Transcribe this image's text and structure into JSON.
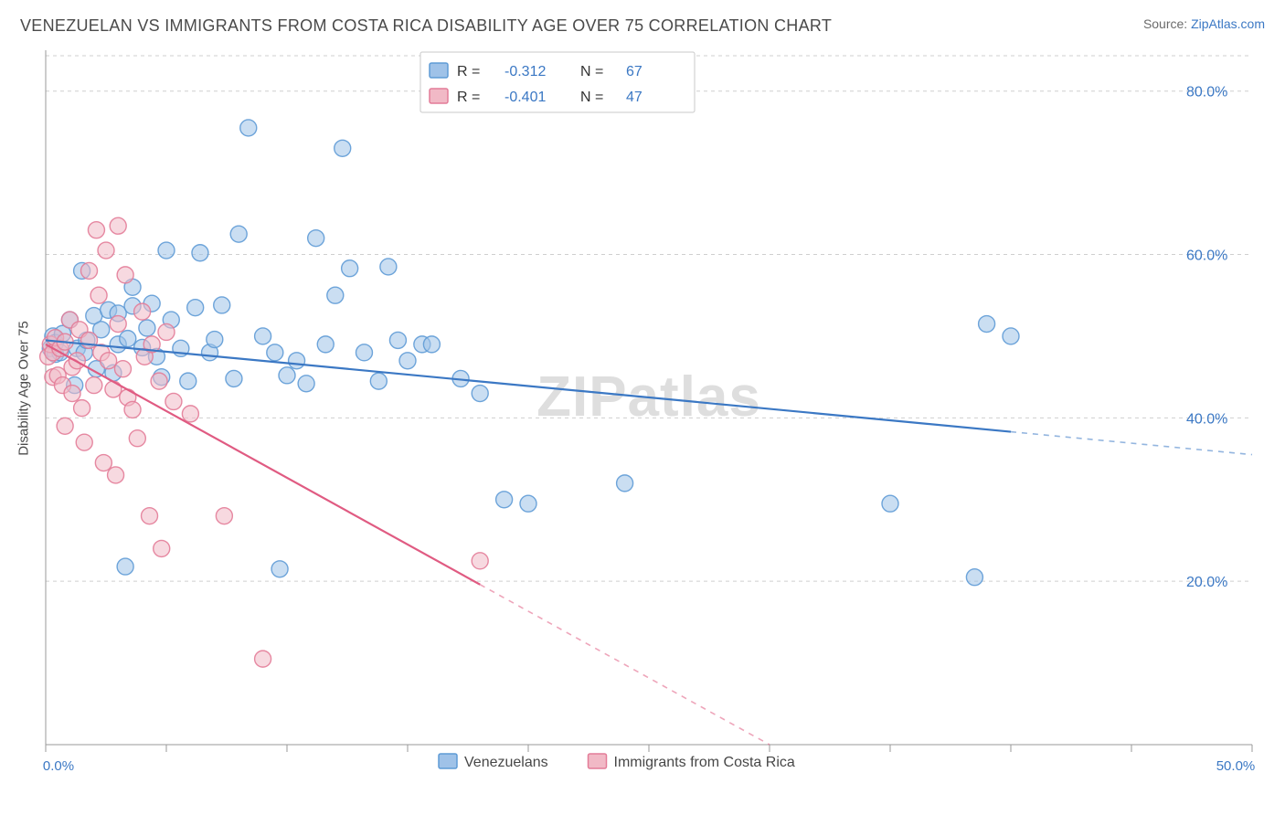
{
  "header": {
    "title": "VENEZUELAN VS IMMIGRANTS FROM COSTA RICA DISABILITY AGE OVER 75 CORRELATION CHART",
    "source_label": "Source:",
    "source_name": "ZipAtlas.com"
  },
  "chart": {
    "type": "scatter",
    "ylabel": "Disability Age Over 75",
    "watermark": "ZIPatlas",
    "background_color": "#ffffff",
    "grid_color": "#cfcfcf",
    "axis_color": "#9a9a9a",
    "tick_label_color": "#3b78c4",
    "xlim": [
      0,
      50
    ],
    "ylim": [
      0,
      85
    ],
    "x_ticks": [
      0,
      5,
      10,
      15,
      20,
      25,
      30,
      35,
      40,
      45,
      50
    ],
    "x_tick_labels": {
      "0": "0.0%",
      "50": "50.0%"
    },
    "y_ticks": [
      20,
      40,
      60,
      80
    ],
    "y_tick_labels": {
      "20": "20.0%",
      "40": "40.0%",
      "60": "60.0%",
      "80": "80.0%"
    },
    "marker_radius": 9,
    "marker_opacity": 0.55,
    "line_width": 2.2,
    "series": [
      {
        "id": "venezuelans",
        "label": "Venezuelans",
        "color_fill": "#9fc2e8",
        "color_stroke": "#5f9bd6",
        "line_color": "#3b78c4",
        "R": "-0.312",
        "N": "67",
        "trend": {
          "x1": 0,
          "y1": 49.5,
          "x2": 50,
          "y2": 35.5
        },
        "points": [
          [
            0.2,
            48.5
          ],
          [
            0.3,
            50.0
          ],
          [
            0.4,
            47.8
          ],
          [
            0.4,
            49.2
          ],
          [
            0.6,
            48.0
          ],
          [
            0.7,
            50.3
          ],
          [
            1.0,
            52.0
          ],
          [
            1.2,
            44.0
          ],
          [
            1.3,
            48.5
          ],
          [
            1.5,
            58.0
          ],
          [
            1.6,
            48.0
          ],
          [
            1.7,
            49.5
          ],
          [
            2.0,
            52.5
          ],
          [
            2.1,
            46.0
          ],
          [
            2.3,
            50.8
          ],
          [
            2.6,
            53.2
          ],
          [
            2.8,
            45.5
          ],
          [
            3.0,
            49.0
          ],
          [
            3.0,
            52.8
          ],
          [
            3.3,
            21.8
          ],
          [
            3.4,
            49.7
          ],
          [
            3.6,
            53.7
          ],
          [
            3.6,
            56.0
          ],
          [
            4.0,
            48.6
          ],
          [
            4.2,
            51.0
          ],
          [
            4.4,
            54.0
          ],
          [
            4.6,
            47.5
          ],
          [
            4.8,
            45.0
          ],
          [
            5.0,
            60.5
          ],
          [
            5.2,
            52.0
          ],
          [
            5.6,
            48.5
          ],
          [
            5.9,
            44.5
          ],
          [
            6.2,
            53.5
          ],
          [
            6.4,
            60.2
          ],
          [
            6.8,
            48.0
          ],
          [
            7.0,
            49.6
          ],
          [
            7.3,
            53.8
          ],
          [
            7.8,
            44.8
          ],
          [
            8.0,
            62.5
          ],
          [
            8.4,
            75.5
          ],
          [
            9.0,
            50.0
          ],
          [
            9.5,
            48.0
          ],
          [
            9.7,
            21.5
          ],
          [
            10.0,
            45.2
          ],
          [
            10.4,
            47.0
          ],
          [
            10.8,
            44.2
          ],
          [
            11.2,
            62.0
          ],
          [
            11.6,
            49.0
          ],
          [
            12.0,
            55.0
          ],
          [
            12.3,
            73.0
          ],
          [
            12.6,
            58.3
          ],
          [
            13.2,
            48.0
          ],
          [
            13.8,
            44.5
          ],
          [
            14.2,
            58.5
          ],
          [
            14.6,
            49.5
          ],
          [
            15.0,
            47.0
          ],
          [
            15.6,
            49.0
          ],
          [
            16.0,
            49.0
          ],
          [
            17.2,
            44.8
          ],
          [
            18.0,
            43.0
          ],
          [
            19.0,
            30.0
          ],
          [
            20.0,
            29.5
          ],
          [
            24.0,
            32.0
          ],
          [
            35.0,
            29.5
          ],
          [
            38.5,
            20.5
          ],
          [
            39.0,
            51.5
          ],
          [
            40.0,
            50.0
          ]
        ]
      },
      {
        "id": "costarica",
        "label": "Immigrants from Costa Rica",
        "color_fill": "#f1b9c6",
        "color_stroke": "#e37c98",
        "line_color": "#e05b82",
        "R": "-0.401",
        "N": "47",
        "trend": {
          "x1": 0,
          "y1": 49.0,
          "x2": 30,
          "y2": 0
        },
        "points": [
          [
            0.1,
            47.5
          ],
          [
            0.2,
            49.0
          ],
          [
            0.3,
            45.0
          ],
          [
            0.3,
            48.0
          ],
          [
            0.4,
            49.8
          ],
          [
            0.5,
            45.2
          ],
          [
            0.6,
            48.5
          ],
          [
            0.7,
            44.0
          ],
          [
            0.8,
            49.3
          ],
          [
            0.8,
            39.0
          ],
          [
            1.0,
            52.0
          ],
          [
            1.1,
            46.2
          ],
          [
            1.1,
            43.0
          ],
          [
            1.3,
            47.0
          ],
          [
            1.4,
            50.8
          ],
          [
            1.5,
            41.2
          ],
          [
            1.6,
            37.0
          ],
          [
            1.8,
            58.0
          ],
          [
            1.8,
            49.5
          ],
          [
            2.0,
            44.0
          ],
          [
            2.1,
            63.0
          ],
          [
            2.2,
            55.0
          ],
          [
            2.3,
            48.0
          ],
          [
            2.4,
            34.5
          ],
          [
            2.5,
            60.5
          ],
          [
            2.6,
            47.0
          ],
          [
            2.8,
            43.5
          ],
          [
            2.9,
            33.0
          ],
          [
            3.0,
            51.5
          ],
          [
            3.0,
            63.5
          ],
          [
            3.2,
            46.0
          ],
          [
            3.3,
            57.5
          ],
          [
            3.4,
            42.5
          ],
          [
            3.6,
            41.0
          ],
          [
            3.8,
            37.5
          ],
          [
            4.0,
            53.0
          ],
          [
            4.1,
            47.5
          ],
          [
            4.3,
            28.0
          ],
          [
            4.4,
            49.0
          ],
          [
            4.7,
            44.5
          ],
          [
            4.8,
            24.0
          ],
          [
            5.0,
            50.5
          ],
          [
            5.3,
            42.0
          ],
          [
            6.0,
            40.5
          ],
          [
            7.4,
            28.0
          ],
          [
            9.0,
            10.5
          ],
          [
            18.0,
            22.5
          ]
        ]
      }
    ],
    "stats_legend": {
      "title_R": "R  =",
      "title_N": "N  ="
    },
    "bottom_legend": {
      "items": [
        "venezuelans",
        "costarica"
      ]
    }
  }
}
